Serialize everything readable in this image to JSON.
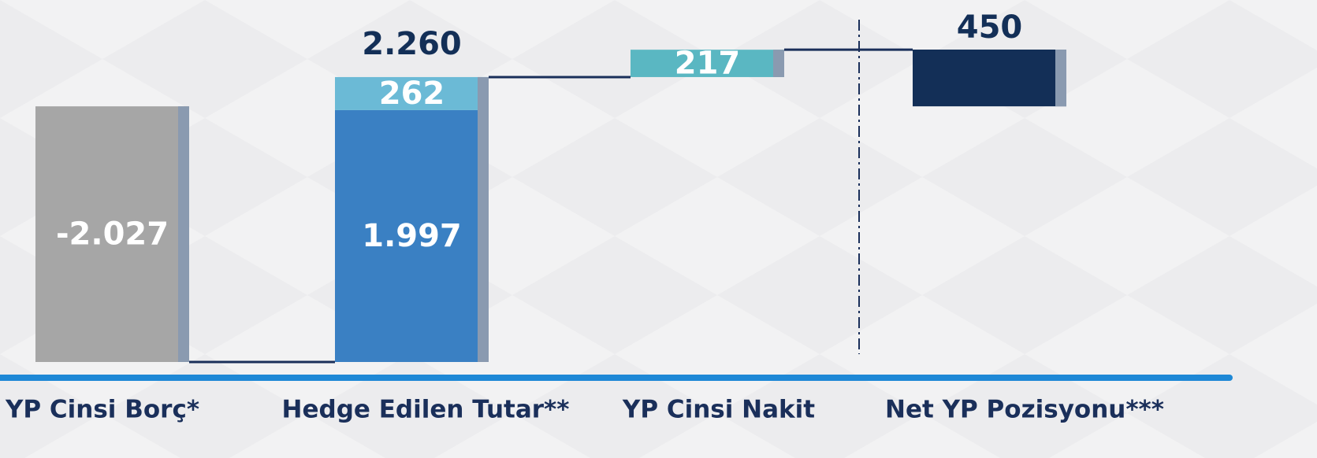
{
  "chart_data": {
    "type": "waterfall",
    "steps": [
      {
        "category": "YP Cinsi Borç*",
        "values": [
          -2027
        ],
        "value_labels": [
          "-2.027"
        ],
        "colors": [
          "#a6a6a6"
        ]
      },
      {
        "category": "Hedge Edilen Tutar**",
        "values": [
          1997,
          262
        ],
        "value_labels": [
          "1.997",
          "262"
        ],
        "colors": [
          "#3a80c3",
          "#6bbad6"
        ],
        "total": 2260,
        "total_label": "2.260"
      },
      {
        "category": "YP Cinsi Nakit",
        "values": [
          217
        ],
        "colors": [
          "#5ab7c2"
        ]
      },
      {
        "category": "Net YP Pozisyonu***",
        "values": [
          450
        ],
        "colors": [
          "#132f57"
        ],
        "is_total": true
      }
    ]
  }
}
